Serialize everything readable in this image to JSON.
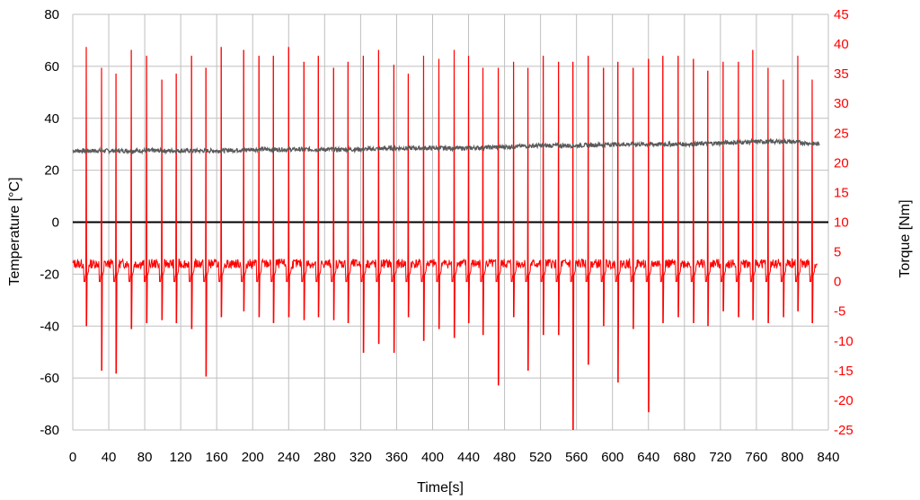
{
  "chart_data": {
    "type": "line",
    "title": "",
    "xlabel": "Time[s]",
    "ylabel_left": "Temperature [°C]",
    "ylabel_right": "Torque [Nm]",
    "xlim": [
      0,
      840
    ],
    "ylim_left": [
      -80,
      80
    ],
    "ylim_right": [
      -25,
      45
    ],
    "x_ticks": [
      0,
      40,
      80,
      120,
      160,
      200,
      240,
      280,
      320,
      360,
      400,
      440,
      480,
      520,
      560,
      600,
      640,
      680,
      720,
      760,
      800,
      840
    ],
    "y_ticks_left": [
      80,
      60,
      40,
      20,
      0,
      -20,
      -40,
      -60,
      -80
    ],
    "y_ticks_right": [
      45,
      40,
      35,
      30,
      25,
      20,
      15,
      10,
      5,
      0,
      -5,
      -10,
      -15,
      -20,
      -25
    ],
    "grid": true,
    "legend": "none",
    "colors": {
      "temperature": "#595959",
      "torque": "#ff0000",
      "grid": "#bfbfbf",
      "zero_line": "#000000"
    },
    "series": [
      {
        "axis": "left",
        "x": [
          0,
          40,
          80,
          120,
          160,
          200,
          240,
          280,
          320,
          360,
          400,
          440,
          480,
          520,
          560,
          600,
          640,
          680,
          720,
          760,
          800,
          830
        ],
        "values": [
          27.5,
          27.5,
          27.5,
          27.5,
          27.5,
          28,
          28,
          28,
          28,
          28.5,
          28.5,
          28.5,
          29,
          29.5,
          29.5,
          30,
          30,
          30,
          30.5,
          31,
          31,
          30
        ]
      },
      {
        "axis": "right",
        "baseline": 3,
        "spike_times": [
          15,
          32,
          48,
          65,
          82,
          99,
          115,
          132,
          148,
          165,
          190,
          207,
          223,
          240,
          257,
          273,
          290,
          306,
          323,
          340,
          357,
          373,
          390,
          407,
          424,
          440,
          456,
          473,
          490,
          506,
          523,
          540,
          556,
          573,
          590,
          606,
          623,
          640,
          656,
          673,
          690,
          706,
          723,
          740,
          756,
          773,
          790,
          806,
          822
        ],
        "spike_peaks": [
          39.5,
          36,
          35,
          39,
          38,
          34,
          35,
          38,
          36,
          39.5,
          39,
          38,
          38,
          39.5,
          37,
          38,
          36,
          37,
          38,
          39,
          36.5,
          35,
          38,
          37.5,
          39,
          38,
          36,
          36,
          37,
          36,
          38,
          37,
          37,
          38,
          36,
          37,
          36,
          37.5,
          38,
          38,
          37.5,
          35.5,
          37,
          37,
          39,
          36,
          34,
          38,
          34
        ],
        "spike_troughs": [
          -7.5,
          -15,
          -15.5,
          -8,
          -7,
          -6.5,
          -7,
          -8,
          -16,
          -6,
          -5,
          -6,
          -7,
          -6,
          -6.5,
          -6,
          -6.5,
          -7,
          -12,
          -10.5,
          -12,
          -6,
          -10,
          -8,
          -9.5,
          -7,
          -9,
          -17.5,
          -6,
          -15,
          -9,
          -9,
          -25,
          -14,
          -7.5,
          -17,
          -8,
          -22,
          -7,
          -6,
          -7,
          -7.5,
          -5,
          -6,
          -6.5,
          -7,
          -6,
          -5,
          -7
        ]
      }
    ]
  }
}
